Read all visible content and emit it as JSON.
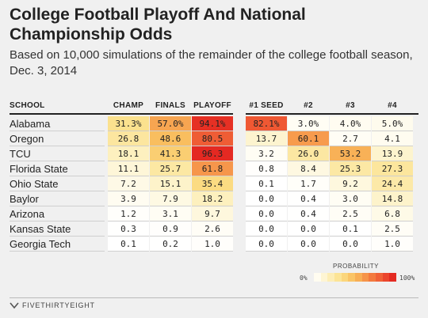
{
  "header": {
    "title": "College Football Playoff And National Championship Odds",
    "subtitle": "Based on 10,000 simulations of the remainder of the college football season, Dec. 3, 2014"
  },
  "chart_data": {
    "type": "table",
    "columns": [
      "SCHOOL",
      "CHAMP",
      "FINALS",
      "PLAYOFF",
      "#1 SEED",
      "#2",
      "#3",
      "#4"
    ],
    "rows": [
      {
        "school": "Alabama",
        "values": [
          "31.3%",
          "57.0%",
          "94.1%",
          "82.1%",
          "3.0%",
          "4.0%",
          "5.0%"
        ]
      },
      {
        "school": "Oregon",
        "values": [
          "26.8",
          "48.6",
          "80.5",
          "13.7",
          "60.1",
          "2.7",
          "4.1"
        ]
      },
      {
        "school": "TCU",
        "values": [
          "18.1",
          "41.3",
          "96.3",
          "3.2",
          "26.0",
          "53.2",
          "13.9"
        ]
      },
      {
        "school": "Florida State",
        "values": [
          "11.1",
          "25.7",
          "61.8",
          "0.8",
          "8.4",
          "25.3",
          "27.3"
        ]
      },
      {
        "school": "Ohio State",
        "values": [
          "7.2",
          "15.1",
          "35.4",
          "0.1",
          "1.7",
          "9.2",
          "24.4"
        ]
      },
      {
        "school": "Baylor",
        "values": [
          "3.9",
          "7.9",
          "18.2",
          "0.0",
          "0.4",
          "3.0",
          "14.8"
        ]
      },
      {
        "school": "Arizona",
        "values": [
          "1.2",
          "3.1",
          "9.7",
          "0.0",
          "0.4",
          "2.5",
          "6.8"
        ]
      },
      {
        "school": "Kansas State",
        "values": [
          "0.3",
          "0.9",
          "2.6",
          "0.0",
          "0.0",
          "0.1",
          "2.5"
        ]
      },
      {
        "school": "Georgia Tech",
        "values": [
          "0.1",
          "0.2",
          "1.0",
          "0.0",
          "0.0",
          "0.0",
          "1.0"
        ]
      }
    ],
    "color_scale": {
      "colors": [
        "#ffffff",
        "#fdf2c4",
        "#fbdf87",
        "#f9bb5b",
        "#f58744",
        "#ee5432",
        "#e11d1d"
      ]
    }
  },
  "legend": {
    "title": "PROBABILITY",
    "low": "0%",
    "high": "100%"
  },
  "footer": {
    "brand": "FIVETHIRTYEIGHT"
  }
}
